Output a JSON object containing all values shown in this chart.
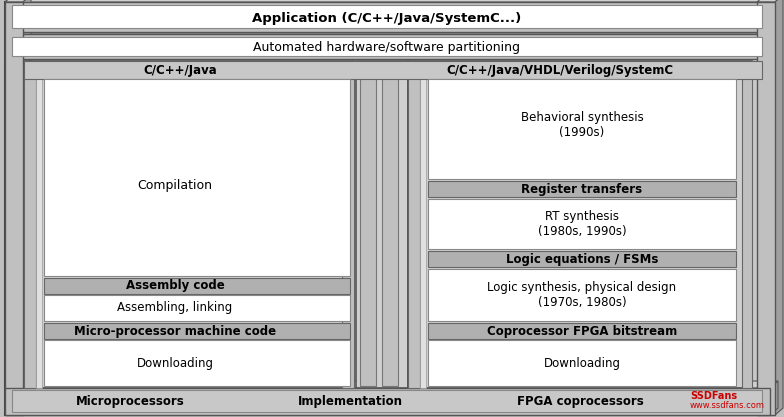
{
  "bg_color": "#c0c0c0",
  "white": "#ffffff",
  "gray_bar": "#b8b8b8",
  "gray_frame": "#c8c8c8",
  "dark_edge": "#444444",
  "med_edge": "#777777",
  "title": "Application (C/C++/Java/SystemC...)",
  "subtitle": "Automated hardware/software partitioning",
  "left_lang": "C/C++/Java",
  "right_lang": "C/C++/Java/VHDL/Verilog/SystemC",
  "bottom_left": "Microprocessors",
  "bottom_mid": "Implementation",
  "bottom_right": "FPGA coprocessors",
  "compilation": "Compilation",
  "assembly_header": "Assembly code",
  "assembling": "Assembling, linking",
  "micro_header": "Micro-processor machine code",
  "downloading_left": "Downloading",
  "behavioral": "Behavioral synthesis\n(1990s)",
  "reg_header": "Register transfers",
  "rt_synth": "RT synthesis\n(1980s, 1990s)",
  "logic_header": "Logic equations / FSMs",
  "logic_synth": "Logic synthesis, physical design\n(1970s, 1980s)",
  "copro_header": "Coprocessor FPGA bitstream",
  "downloading_right": "Downloading",
  "wm1": "SSDFans",
  "wm2": "www.ssdfans.com"
}
